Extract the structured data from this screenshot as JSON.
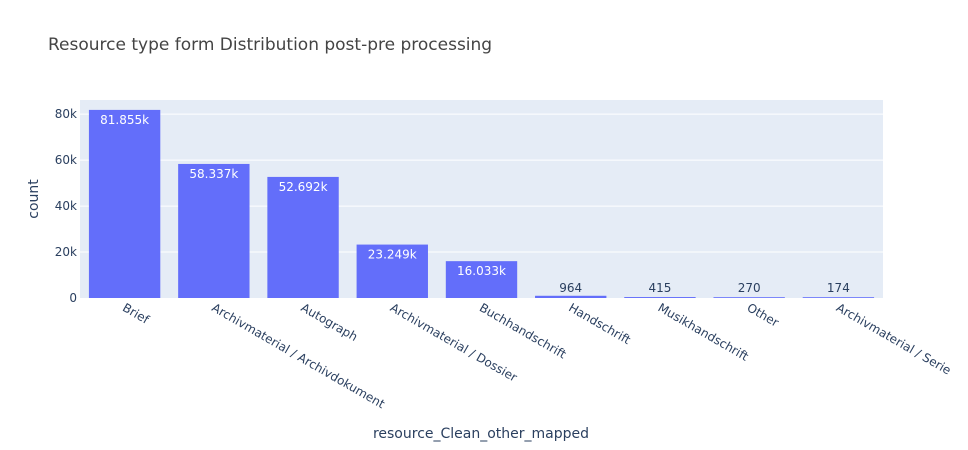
{
  "chart_data": {
    "type": "bar",
    "title": "Resource type form Distribution  post-pre processing",
    "xlabel": "resource_Clean_other_mapped",
    "ylabel": "count",
    "categories": [
      "Brief",
      "Archivmaterial / Archivdokument",
      "Autograph",
      "Archivmaterial / Dossier",
      "Buchhandschrift",
      "Handschrift",
      "Musikhandschrift",
      "Other",
      "Archivmaterial / Serie"
    ],
    "values": [
      81855,
      58337,
      52692,
      23249,
      16033,
      964,
      415,
      270,
      174
    ],
    "data_labels": [
      "81.855k",
      "58.337k",
      "52.692k",
      "23.249k",
      "16.033k",
      "964",
      "415",
      "270",
      "174"
    ],
    "ylim": [
      0,
      86163
    ],
    "yticks": [
      0,
      20000,
      40000,
      60000,
      80000
    ],
    "ytick_labels": [
      "0",
      "20k",
      "40k",
      "60k",
      "80k"
    ],
    "grid": true,
    "colors": {
      "bar": "#636efa",
      "plot_bg": "#e5ecf6",
      "grid": "#ffffff"
    }
  }
}
